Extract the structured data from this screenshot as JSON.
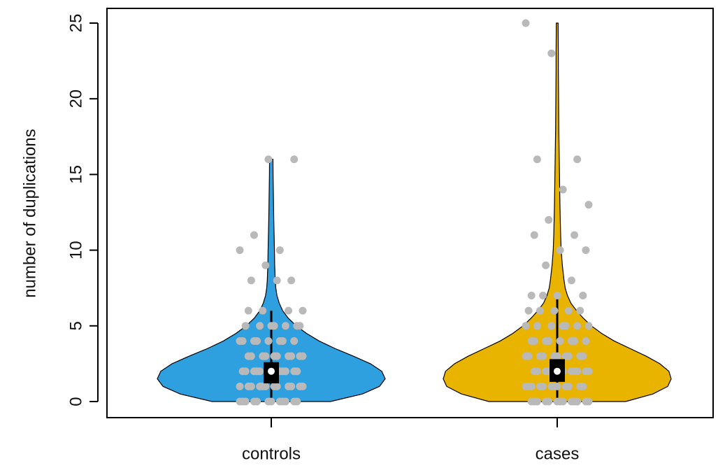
{
  "chart_data": {
    "type": "violin",
    "y_label": "number of duplications",
    "categories": [
      "controls",
      "cases"
    ],
    "ylim": [
      0,
      25
    ],
    "yticks": [
      0,
      5,
      10,
      15,
      20,
      25
    ],
    "groups": [
      {
        "name": "controls",
        "color": "#2e9fdf",
        "density_y": [
          0,
          0.5,
          1,
          1.5,
          2,
          2.5,
          3,
          3.5,
          4,
          4.5,
          5,
          5.5,
          6,
          6.5,
          7,
          7.5,
          8,
          9,
          10,
          11,
          12,
          13,
          14,
          15,
          16
        ],
        "density": [
          0.52,
          0.8,
          0.95,
          1.0,
          0.97,
          0.87,
          0.72,
          0.56,
          0.42,
          0.31,
          0.22,
          0.15,
          0.1,
          0.07,
          0.05,
          0.04,
          0.035,
          0.03,
          0.028,
          0.025,
          0.022,
          0.02,
          0.018,
          0.016,
          0.015
        ],
        "q1": 1.2,
        "median": 2,
        "q3": 2.6,
        "whisker_low": 0,
        "whisker_high": 6,
        "points": [
          0,
          0,
          0,
          0,
          0,
          0,
          0,
          0,
          0,
          0,
          0,
          0,
          1,
          1,
          1,
          1,
          1,
          1,
          1,
          1,
          1,
          1,
          1,
          1,
          2,
          2,
          2,
          2,
          2,
          2,
          2,
          2,
          2,
          2,
          2,
          2,
          3,
          3,
          3,
          3,
          3,
          3,
          3,
          3,
          3,
          3,
          4,
          4,
          4,
          4,
          4,
          4,
          4,
          4,
          5,
          5,
          5,
          5,
          5,
          5,
          5,
          6,
          6,
          6,
          6,
          8,
          8,
          8,
          9,
          10,
          10,
          11,
          16,
          16
        ]
      },
      {
        "name": "cases",
        "color": "#e8b400",
        "density_y": [
          0,
          0.5,
          1,
          1.5,
          2,
          2.5,
          3,
          3.5,
          4,
          4.5,
          5,
          5.5,
          6,
          6.5,
          7,
          7.5,
          8,
          9,
          10,
          11,
          12,
          13,
          14,
          15,
          16,
          17,
          18,
          19,
          20,
          21,
          22,
          23,
          24,
          25
        ],
        "density": [
          0.6,
          0.84,
          0.97,
          1.0,
          0.98,
          0.9,
          0.78,
          0.64,
          0.5,
          0.39,
          0.3,
          0.23,
          0.17,
          0.12,
          0.09,
          0.07,
          0.06,
          0.045,
          0.035,
          0.03,
          0.027,
          0.024,
          0.022,
          0.02,
          0.018,
          0.016,
          0.014,
          0.013,
          0.012,
          0.011,
          0.01,
          0.01,
          0.009,
          0.008
        ],
        "q1": 1.3,
        "median": 2,
        "q3": 2.8,
        "whisker_low": 0,
        "whisker_high": 7,
        "points": [
          0,
          0,
          0,
          0,
          0,
          0,
          0,
          0,
          0,
          0,
          0,
          0,
          0,
          1,
          1,
          1,
          1,
          1,
          1,
          1,
          1,
          1,
          1,
          1,
          1,
          2,
          2,
          2,
          2,
          2,
          2,
          2,
          2,
          2,
          2,
          2,
          2,
          3,
          3,
          3,
          3,
          3,
          3,
          3,
          3,
          3,
          3,
          4,
          4,
          4,
          4,
          4,
          4,
          4,
          4,
          5,
          5,
          5,
          5,
          5,
          5,
          5,
          6,
          6,
          6,
          6,
          6,
          7,
          7,
          7,
          7,
          8,
          9,
          10,
          10,
          11,
          11,
          12,
          13,
          14,
          16,
          16,
          23,
          25
        ]
      }
    ]
  }
}
